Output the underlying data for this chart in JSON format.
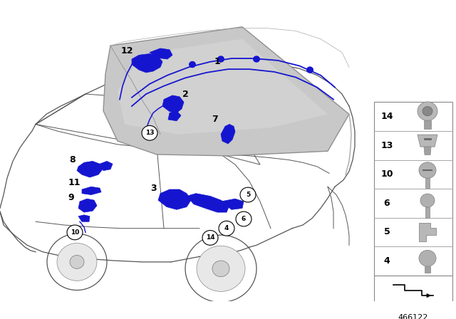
{
  "background_color": "#ffffff",
  "part_number": "466122",
  "fig_width": 6.4,
  "fig_height": 4.48,
  "dpi": 100,
  "blue_color": "#1515d0",
  "car_body_color": "#f0f0f0",
  "car_outline_color": "#555555",
  "roof_color": "#cccccc",
  "roof_edge_color": "#888888",
  "panel_border_color": "#888888",
  "silver_color": "#b0b0b0",
  "dark_gray": "#555555",
  "label_fontsize": 8,
  "part_number_fontsize": 7
}
